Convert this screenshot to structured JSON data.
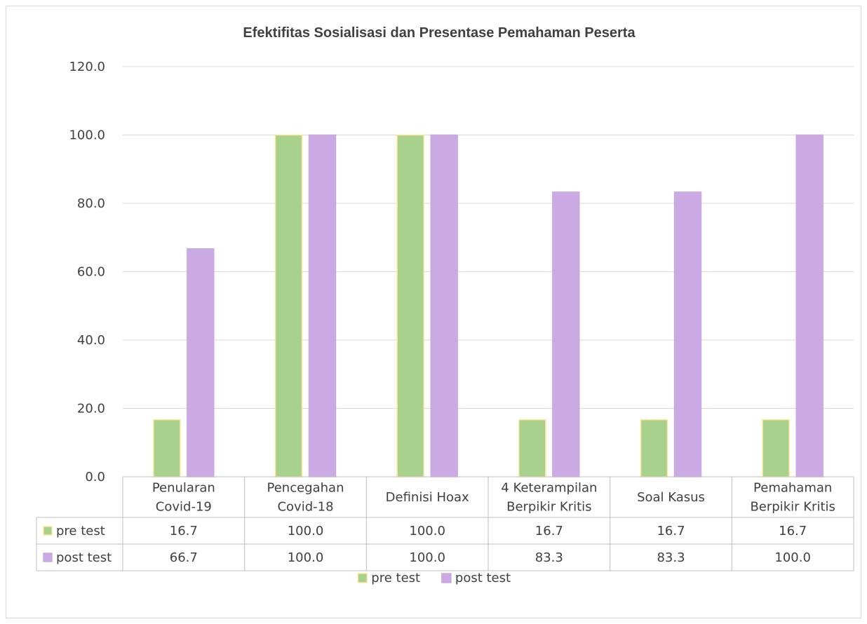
{
  "chart_data": {
    "type": "bar",
    "title": "Efektifitas Sosialisasi dan Presentase Pemahaman Peserta",
    "categories": [
      [
        "Penularan",
        "Covid-19"
      ],
      [
        "Pencegahan",
        "Covid-18"
      ],
      [
        "Definisi Hoax"
      ],
      [
        "4 Keterampilan",
        "Berpikir Kritis"
      ],
      [
        "Soal Kasus"
      ],
      [
        "Pemahaman",
        "Berpikir Kritis"
      ]
    ],
    "series": [
      {
        "name": "pre test",
        "color": "#a9d18e",
        "border": "#ffe699",
        "values": [
          16.7,
          100.0,
          100.0,
          16.7,
          16.7,
          16.7
        ]
      },
      {
        "name": "post test",
        "color": "#cbaae4",
        "border": "#cbaae4",
        "values": [
          66.7,
          100.0,
          100.0,
          83.3,
          83.3,
          100.0
        ]
      }
    ],
    "ylim": [
      0,
      120
    ],
    "yticks": [
      "0.0",
      "20.0",
      "40.0",
      "60.0",
      "80.0",
      "100.0",
      "120.0"
    ],
    "grid": true,
    "data_table": true,
    "legend_position": "bottom"
  }
}
